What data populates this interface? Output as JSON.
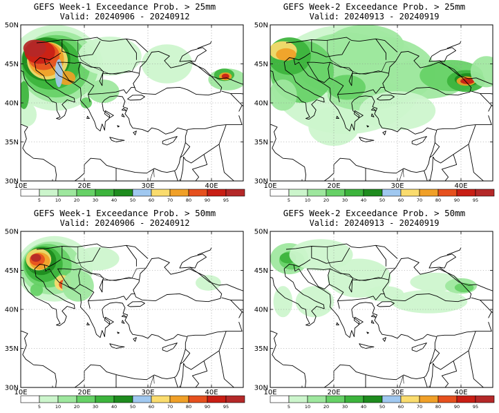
{
  "panels": [
    {
      "title": "GEFS Week-1 Exceedance Prob. > 25mm",
      "valid": "Valid: 20240906 - 20240912"
    },
    {
      "title": "GEFS Week-2 Exceedance Prob. > 25mm",
      "valid": "Valid: 20240913 - 20240919"
    },
    {
      "title": "GEFS Week-1 Exceedance Prob. > 50mm",
      "valid": "Valid: 20240906 - 20240912"
    },
    {
      "title": "GEFS Week-2 Exceedance Prob. > 50mm",
      "valid": "Valid: 20240913 - 20240919"
    }
  ],
  "map": {
    "lat_labels": [
      "50N",
      "45N",
      "40N",
      "35N",
      "30N"
    ],
    "lon_labels": [
      "10E",
      "20E",
      "30E",
      "40E"
    ],
    "lat_range": [
      30,
      50
    ],
    "lon_range": [
      10,
      45
    ],
    "grid": "dotted",
    "land_color": "#ffffff",
    "coast_color": "#000000"
  },
  "colorbar": {
    "levels": [
      "5",
      "10",
      "20",
      "30",
      "40",
      "50",
      "60",
      "70",
      "80",
      "90",
      "95"
    ],
    "colors": [
      "#ffffff",
      "#ccf5cc",
      "#9ee79e",
      "#66d166",
      "#3cb43c",
      "#1e8c1e",
      "#a0c8f0",
      "#fadc6e",
      "#f0a028",
      "#e6501e",
      "#c81e14",
      "#b42828"
    ]
  }
}
